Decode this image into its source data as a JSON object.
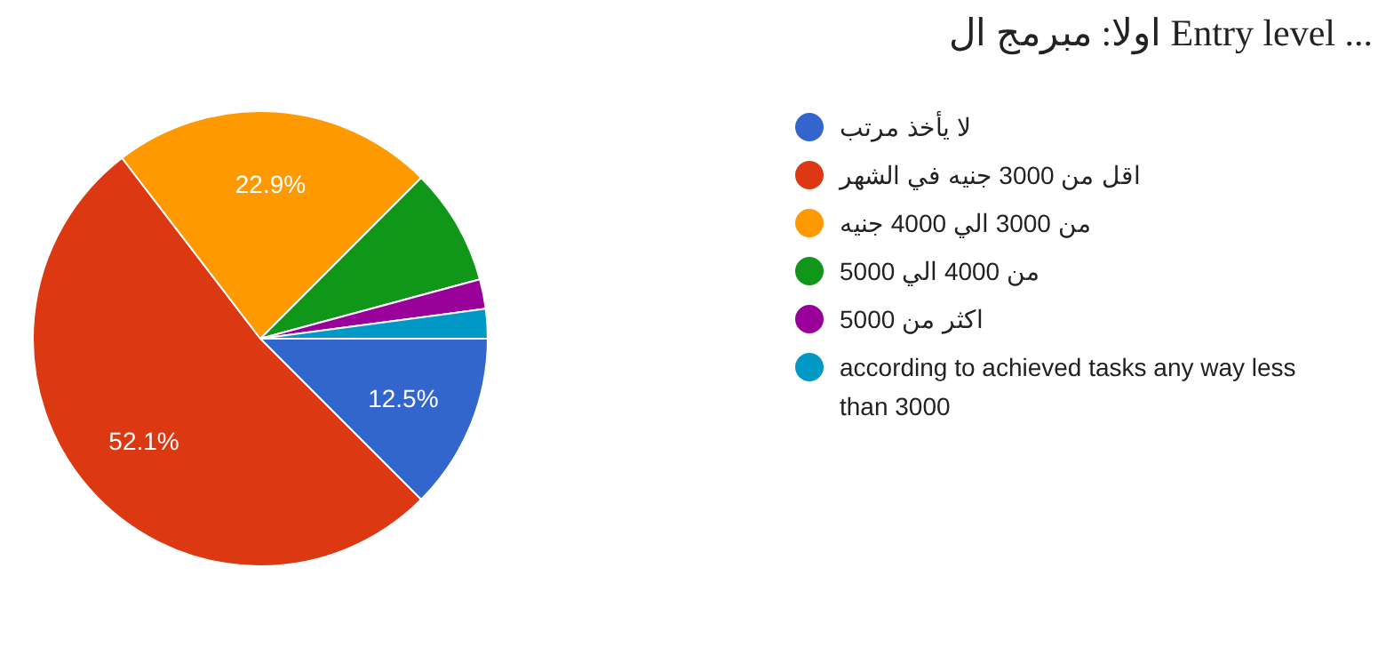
{
  "chart_data": {
    "type": "pie",
    "title": "اولا: مبرمج ال Entry level ...",
    "categories": [
      "لا يأخذ مرتب",
      "اقل من 3000 جنيه في الشهر",
      "من 3000 الي 4000 جنيه",
      "من 4000 الي 5000",
      "اكثر من 5000",
      "according to achieved tasks any way less than 3000"
    ],
    "values": [
      12.5,
      52.1,
      22.9,
      8.3,
      2.1,
      2.1
    ],
    "colors": [
      "#3366cc",
      "#dc3912",
      "#ff9900",
      "#109618",
      "#990099",
      "#0099c6"
    ],
    "value_labels": [
      "12.5%",
      "52.1%",
      "22.9%",
      null,
      null,
      null
    ],
    "legend": "right"
  }
}
